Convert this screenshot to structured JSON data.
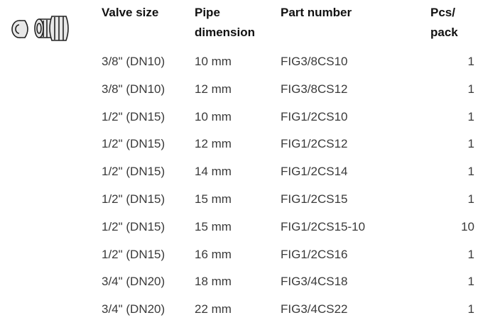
{
  "table": {
    "header": [
      "Valve size",
      "Pipe dimension",
      "Part number",
      "Pcs/ pack"
    ],
    "rows": [
      [
        "3/8\" (DN10)",
        "10 mm",
        "FIG3/8CS10",
        "1"
      ],
      [
        "3/8\" (DN10)",
        "12 mm",
        "FIG3/8CS12",
        "1"
      ],
      [
        "1/2\" (DN15)",
        "10 mm",
        "FIG1/2CS10",
        "1"
      ],
      [
        "1/2\" (DN15)",
        "12 mm",
        "FIG1/2CS12",
        "1"
      ],
      [
        "1/2\" (DN15)",
        "14 mm",
        "FIG1/2CS14",
        "1"
      ],
      [
        "1/2\" (DN15)",
        "15 mm",
        "FIG1/2CS15",
        "1"
      ],
      [
        "1/2\" (DN15)",
        "15 mm",
        "FIG1/2CS15-10",
        "10"
      ],
      [
        "1/2\" (DN15)",
        "16 mm",
        "FIG1/2CS16",
        "1"
      ],
      [
        "3/4\" (DN20)",
        "18 mm",
        "FIG3/4CS18",
        "1"
      ],
      [
        "3/4\" (DN20)",
        "22 mm",
        "FIG3/4CS22",
        "1"
      ]
    ]
  }
}
